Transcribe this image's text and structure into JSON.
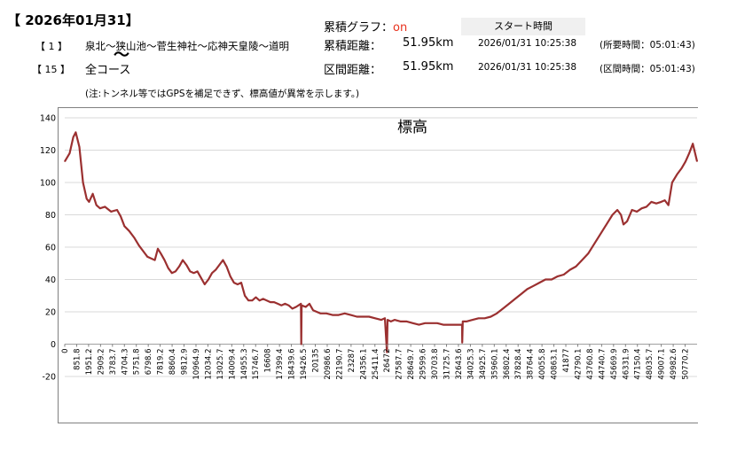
{
  "header": {
    "date": "【 2026年01月31】",
    "row1": {
      "index": "【 1 】",
      "route": "泉北～狭山池～菅生神社～応神天皇陵～道明",
      "label": "累積距離：",
      "value": "51.95km",
      "timestamp": "2026/01/31 10:25:38",
      "time": "(所要時間：05:01:43)"
    },
    "row2": {
      "index": "【 15 】",
      "route": "全コース",
      "label": "区間距離：",
      "value": "51.95km",
      "timestamp": "2026/01/31 10:25:38",
      "time": "(区間時間：05:01:43)"
    },
    "graph_toggle_label": "累積グラフ：",
    "graph_toggle_value": "on",
    "start_time_label": "スタート時間",
    "route_wave": "〜",
    "note": "(注:トンネル等ではGPSを補足できず、標高値が異常を示します。)"
  },
  "colors": {
    "line": "#9b3030",
    "grid": "#d9d9d9",
    "accent": "#e8321e"
  },
  "chart_data": {
    "type": "line",
    "title": "標高",
    "xlabel": "",
    "ylabel": "",
    "ylim": [
      -20,
      140
    ],
    "yticks": [
      -20,
      0,
      20,
      40,
      60,
      80,
      100,
      120,
      140
    ],
    "xlim": [
      0,
      51950
    ],
    "xtick_labels": [
      "0",
      "851.8",
      "1951.2",
      "2909.2",
      "3783.7",
      "4704.3",
      "5751.8",
      "6798.6",
      "7819.2",
      "8860.4",
      "9812.9",
      "10964.9",
      "12034.2",
      "13025.7",
      "14009.4",
      "14955.3",
      "15746.7",
      "16608",
      "17399.4",
      "18439.6",
      "19426.5",
      "20135",
      "20986.6",
      "22190.7",
      "23287",
      "24356.1",
      "25411.4",
      "26472",
      "27587.7",
      "28649.7",
      "29599.6",
      "30703.8",
      "31725.7",
      "32643.6",
      "34025.3",
      "34925.7",
      "35960.1",
      "36802.4",
      "37828.4",
      "38764.4",
      "40055.8",
      "40863.1",
      "41877",
      "42790.1",
      "43760.8",
      "44740.7",
      "45669.9",
      "46331.9",
      "47150.4",
      "48035.7",
      "49007.1",
      "49982.6",
      "50770.2"
    ],
    "grid": true,
    "legend": "none",
    "series": [
      {
        "name": "",
        "points": [
          [
            0,
            113
          ],
          [
            400,
            118
          ],
          [
            700,
            128
          ],
          [
            900,
            131
          ],
          [
            1200,
            122
          ],
          [
            1500,
            100
          ],
          [
            1800,
            90
          ],
          [
            2000,
            88
          ],
          [
            2300,
            93
          ],
          [
            2600,
            86
          ],
          [
            2900,
            84
          ],
          [
            3300,
            85
          ],
          [
            3800,
            82
          ],
          [
            4300,
            83
          ],
          [
            4600,
            79
          ],
          [
            4900,
            73
          ],
          [
            5300,
            70
          ],
          [
            5700,
            66
          ],
          [
            6100,
            61
          ],
          [
            6500,
            57
          ],
          [
            6800,
            54
          ],
          [
            7100,
            53
          ],
          [
            7400,
            52
          ],
          [
            7650,
            59
          ],
          [
            7900,
            56
          ],
          [
            8200,
            52
          ],
          [
            8500,
            47
          ],
          [
            8800,
            44
          ],
          [
            9100,
            45
          ],
          [
            9400,
            48
          ],
          [
            9700,
            52
          ],
          [
            10000,
            49
          ],
          [
            10300,
            45
          ],
          [
            10600,
            44
          ],
          [
            10900,
            45
          ],
          [
            11200,
            41
          ],
          [
            11500,
            37
          ],
          [
            11800,
            40
          ],
          [
            12100,
            44
          ],
          [
            12400,
            46
          ],
          [
            12700,
            49
          ],
          [
            13000,
            52
          ],
          [
            13300,
            48
          ],
          [
            13600,
            42
          ],
          [
            13900,
            38
          ],
          [
            14200,
            37
          ],
          [
            14500,
            38
          ],
          [
            14800,
            30
          ],
          [
            15100,
            27
          ],
          [
            15400,
            27
          ],
          [
            15700,
            29
          ],
          [
            16000,
            27
          ],
          [
            16300,
            28
          ],
          [
            16600,
            27
          ],
          [
            16900,
            26
          ],
          [
            17200,
            26
          ],
          [
            17500,
            25
          ],
          [
            17800,
            24
          ],
          [
            18100,
            25
          ],
          [
            18400,
            24
          ],
          [
            18700,
            22
          ],
          [
            19000,
            23
          ],
          [
            19400,
            25
          ],
          [
            19430,
            0
          ],
          [
            19460,
            24
          ],
          [
            19800,
            23
          ],
          [
            20100,
            25
          ],
          [
            20400,
            21
          ],
          [
            20700,
            20
          ],
          [
            21000,
            19
          ],
          [
            21500,
            19
          ],
          [
            22000,
            18
          ],
          [
            22500,
            18
          ],
          [
            23000,
            19
          ],
          [
            23500,
            18
          ],
          [
            24000,
            17
          ],
          [
            24500,
            17
          ],
          [
            25000,
            17
          ],
          [
            25500,
            16
          ],
          [
            26000,
            15
          ],
          [
            26300,
            16
          ],
          [
            26470,
            -5
          ],
          [
            26520,
            15
          ],
          [
            26800,
            14
          ],
          [
            27100,
            15
          ],
          [
            27600,
            14
          ],
          [
            28100,
            14
          ],
          [
            28600,
            13
          ],
          [
            29100,
            12
          ],
          [
            29600,
            13
          ],
          [
            30100,
            13
          ],
          [
            30600,
            13
          ],
          [
            31100,
            12
          ],
          [
            31600,
            12
          ],
          [
            32100,
            12
          ],
          [
            32640,
            12
          ],
          [
            32660,
            1
          ],
          [
            32700,
            14
          ],
          [
            33000,
            14
          ],
          [
            33500,
            15
          ],
          [
            34000,
            16
          ],
          [
            34500,
            16
          ],
          [
            35000,
            17
          ],
          [
            35500,
            19
          ],
          [
            36000,
            22
          ],
          [
            36500,
            25
          ],
          [
            37000,
            28
          ],
          [
            37500,
            31
          ],
          [
            38000,
            34
          ],
          [
            38500,
            36
          ],
          [
            39000,
            38
          ],
          [
            39500,
            40
          ],
          [
            40000,
            40
          ],
          [
            40500,
            42
          ],
          [
            41000,
            43
          ],
          [
            41500,
            46
          ],
          [
            42000,
            48
          ],
          [
            42500,
            52
          ],
          [
            43000,
            56
          ],
          [
            43500,
            62
          ],
          [
            44000,
            68
          ],
          [
            44500,
            74
          ],
          [
            45000,
            80
          ],
          [
            45400,
            83
          ],
          [
            45700,
            80
          ],
          [
            45900,
            74
          ],
          [
            46200,
            76
          ],
          [
            46600,
            83
          ],
          [
            47000,
            82
          ],
          [
            47400,
            84
          ],
          [
            47800,
            85
          ],
          [
            48200,
            88
          ],
          [
            48600,
            87
          ],
          [
            49000,
            88
          ],
          [
            49300,
            89
          ],
          [
            49600,
            86
          ],
          [
            49900,
            100
          ],
          [
            50300,
            105
          ],
          [
            50700,
            109
          ],
          [
            51000,
            113
          ],
          [
            51300,
            118
          ],
          [
            51600,
            124
          ],
          [
            51950,
            113
          ]
        ]
      }
    ]
  }
}
